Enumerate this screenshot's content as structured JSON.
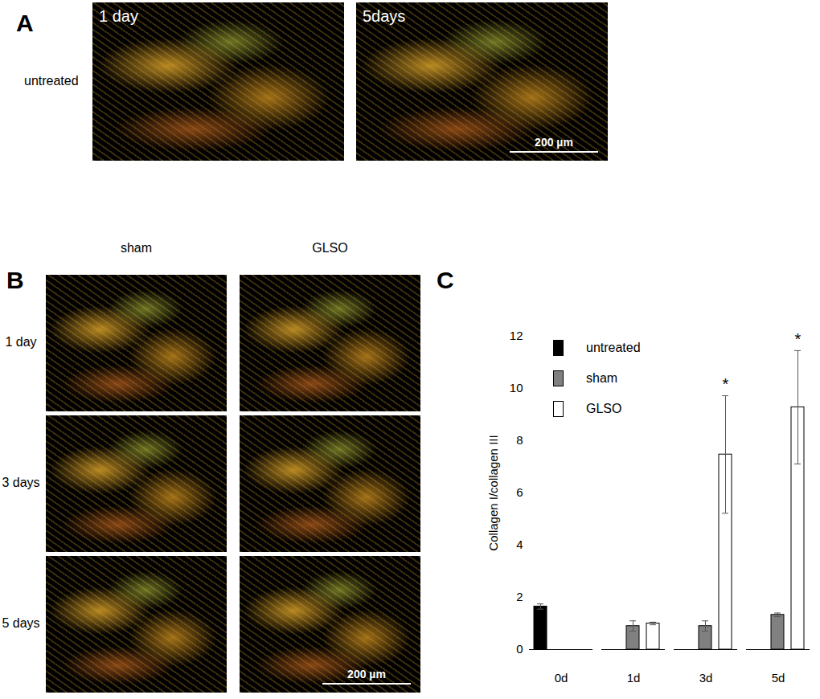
{
  "panel_A": {
    "label": "A",
    "row_label": "untreated",
    "images": [
      {
        "caption": "1 day"
      },
      {
        "caption": "5days",
        "scale_bar": "200 µm"
      }
    ]
  },
  "panel_B": {
    "label": "B",
    "columns": [
      "sham",
      "GLSO"
    ],
    "rows": [
      "1 day",
      "3 days",
      "5 days"
    ],
    "scale_bar": "200 µm"
  },
  "panel_C": {
    "label": "C"
  },
  "chart_data": {
    "type": "bar",
    "y_label": "Collagen I/collagen III",
    "categories": [
      "0d",
      "1d",
      "3d",
      "5d"
    ],
    "series": [
      {
        "name": "untreated",
        "color": "#000000",
        "values": [
          1.65,
          null,
          null,
          null
        ],
        "errors": [
          0.1,
          null,
          null,
          null
        ]
      },
      {
        "name": "sham",
        "color": "#808080",
        "values": [
          null,
          0.9,
          0.9,
          1.33
        ],
        "errors": [
          null,
          0.2,
          0.2,
          0.07
        ]
      },
      {
        "name": "GLSO",
        "color": "#ffffff",
        "values": [
          null,
          1.0,
          7.47,
          9.28
        ],
        "errors": [
          null,
          0.05,
          2.25,
          2.17
        ]
      }
    ],
    "ylim": [
      0,
      12
    ],
    "yticks": [
      0,
      2,
      4,
      6,
      8,
      10,
      12
    ],
    "legend": "top-left",
    "annotations": [
      {
        "category": "3d",
        "series": "GLSO",
        "text": "*"
      },
      {
        "category": "5d",
        "series": "GLSO",
        "text": "*"
      }
    ]
  }
}
